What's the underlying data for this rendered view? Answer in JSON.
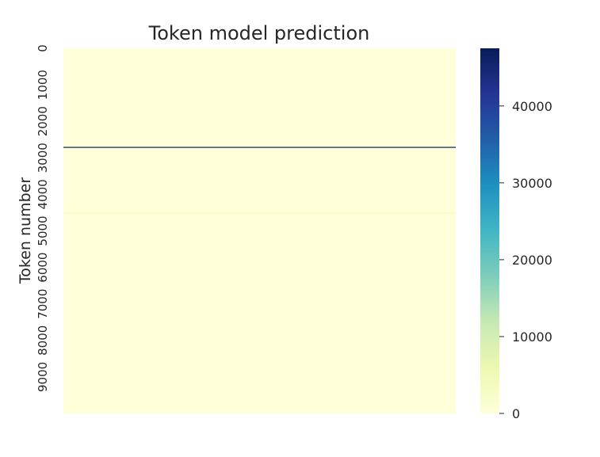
{
  "chart_data": {
    "type": "heatmap",
    "title": "Token model prediction",
    "xlabel": "",
    "ylabel": "Token number",
    "y_ticks": [
      0,
      1000,
      2000,
      3000,
      4000,
      5000,
      6000,
      7000,
      8000,
      9000
    ],
    "y_range": [
      0,
      10000
    ],
    "colorbar": {
      "colormap": "YlGnBu",
      "range": [
        0,
        47500
      ],
      "ticks": [
        0,
        10000,
        20000,
        30000,
        40000
      ],
      "colors": [
        "#ffffd9",
        "#edf8b1",
        "#c7e9b4",
        "#7fcdbb",
        "#41b6c4",
        "#1d91c0",
        "#225ea8",
        "#253494",
        "#081d58"
      ]
    },
    "background_value": 0,
    "highlight_rows": [
      {
        "token": 2700,
        "value": 47500
      },
      {
        "token": 4500,
        "value": 3500
      }
    ]
  }
}
